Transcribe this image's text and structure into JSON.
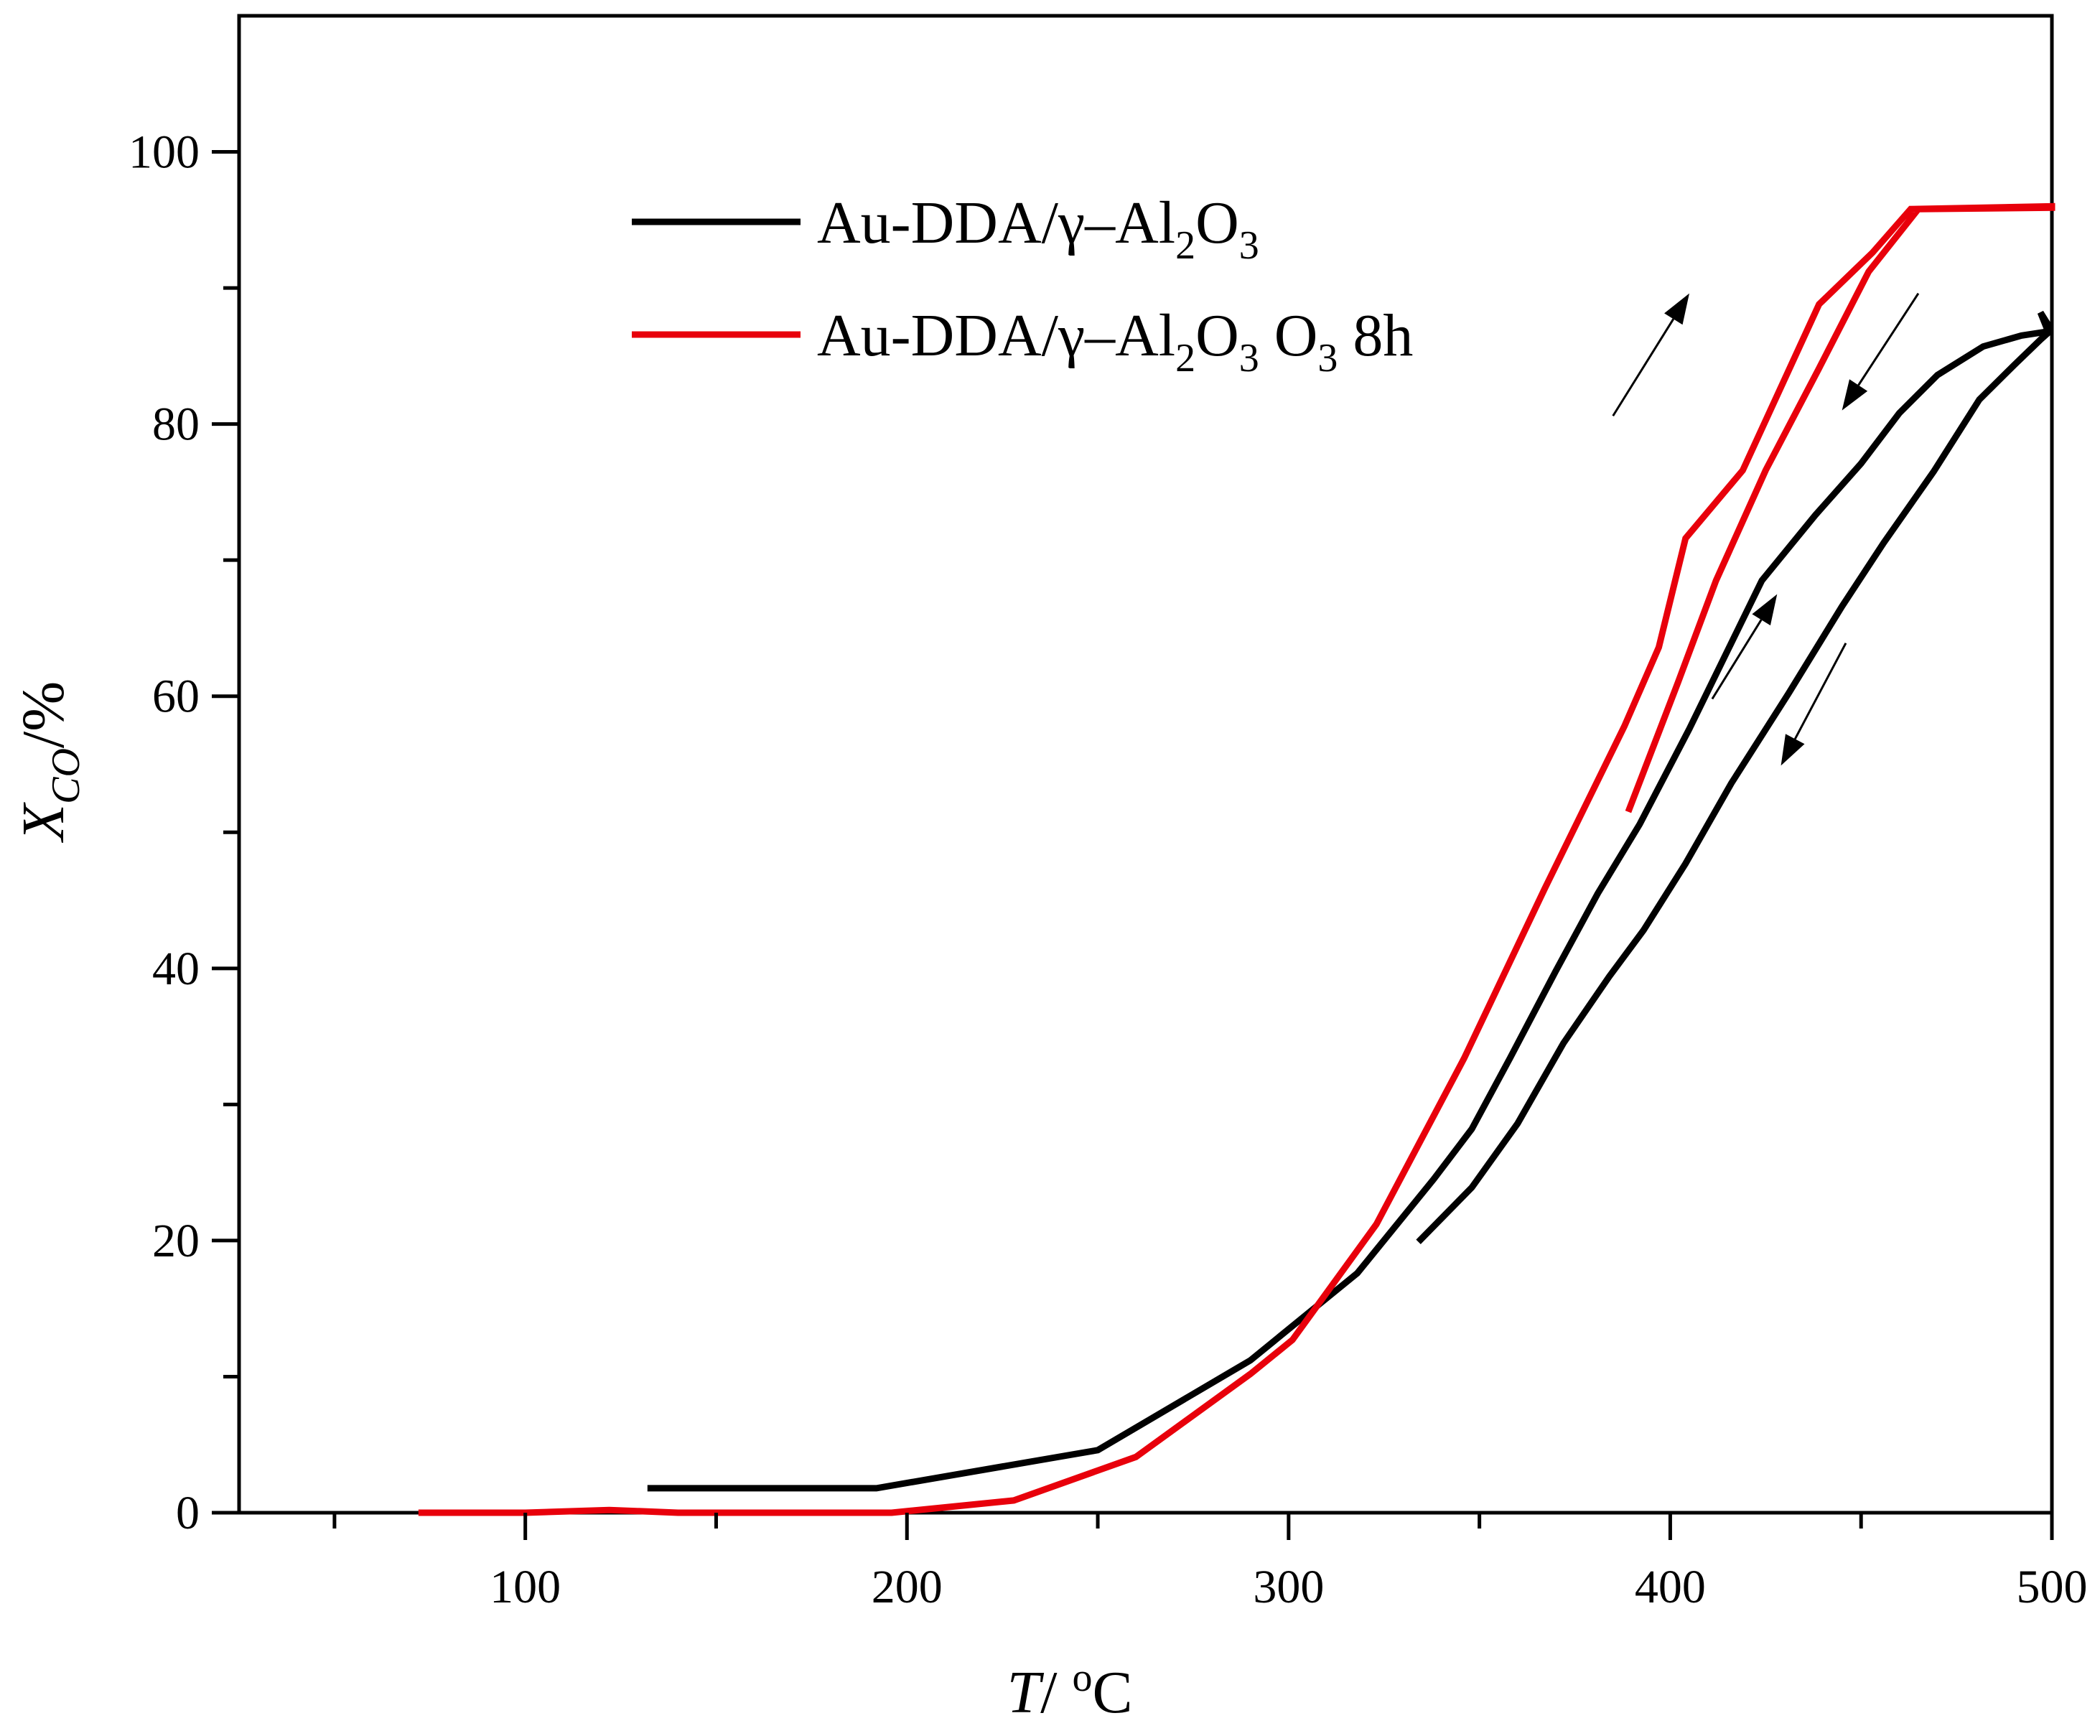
{
  "chart_data": {
    "type": "line",
    "title": "",
    "xlabel": {
      "main": "T",
      "sep": "/ ",
      "unit_sup": "o",
      "unit": "C"
    },
    "ylabel": {
      "main": "X",
      "sub": "CO",
      "sep": "/%"
    },
    "xlim": [
      25,
      500
    ],
    "ylim": [
      0,
      110
    ],
    "x_ticks": [
      100,
      200,
      300,
      400,
      500
    ],
    "y_ticks": [
      0,
      20,
      40,
      60,
      80,
      100
    ],
    "grid": false,
    "legend_position": "top-center",
    "series": [
      {
        "name": "Au-DDA/γ–Al2O3",
        "legend": {
          "text": "Au-DDA/γ–Al",
          "sub1": "2",
          "text2": "O",
          "sub2": "3",
          "text3": ""
        },
        "color": "#000000",
        "x": [
          132,
          192,
          250,
          290,
          318,
          338,
          348,
          358,
          370,
          381,
          392,
          405,
          424,
          438,
          450,
          460,
          470,
          482,
          492,
          499,
          497,
          499,
          499,
          497,
          490,
          481,
          469,
          456,
          445,
          431,
          416,
          404,
          393,
          384,
          372,
          360,
          348,
          334
        ],
        "y": [
          1.8,
          1.8,
          4.6,
          11.2,
          17.6,
          24.5,
          28.2,
          33.4,
          39.8,
          45.5,
          50.6,
          57.6,
          68.5,
          73.3,
          77.1,
          80.8,
          83.6,
          85.7,
          86.5,
          86.8,
          88.2,
          87.3,
          86.7,
          86.2,
          84.3,
          81.8,
          76.5,
          71.3,
          66.6,
          60.2,
          53.6,
          47.7,
          42.8,
          39.4,
          34.5,
          28.6,
          23.9,
          19.9
        ]
      },
      {
        "name": "Au-DDA/γ–Al2O3 O3 8h",
        "legend": {
          "text": "Au-DDA/γ–Al",
          "sub1": "2",
          "text2": "O",
          "sub2": "3",
          "text3": " O",
          "sub3": "3",
          "text4": " 8h"
        },
        "color": "#e8000b",
        "x": [
          72,
          100,
          122,
          140,
          170,
          196,
          228,
          260,
          290,
          301,
          323,
          346,
          367,
          388,
          397,
          404,
          419,
          439,
          453,
          463,
          500,
          500,
          465,
          452,
          439,
          425,
          412,
          402,
          389
        ],
        "y": [
          0.0,
          0.0,
          0.2,
          0.0,
          0.0,
          0.0,
          0.9,
          4.1,
          10.2,
          12.7,
          21.2,
          33.4,
          45.8,
          57.8,
          63.6,
          71.6,
          76.6,
          88.8,
          92.6,
          95.8,
          96.0,
          95.9,
          95.8,
          91.2,
          84.1,
          76.6,
          68.5,
          61.0,
          51.5
        ]
      }
    ],
    "arrows": [
      {
        "series": "Au-DDA/γ–Al2O3 O3 8h",
        "direction": "up",
        "from": [
          385,
          80.6
        ],
        "to": [
          405,
          89.6
        ]
      },
      {
        "series": "Au-DDA/γ–Al2O3 O3 8h",
        "direction": "down",
        "from": [
          465,
          89.6
        ],
        "to": [
          445,
          81.0
        ]
      },
      {
        "series": "Au-DDA/γ–Al2O3",
        "direction": "up",
        "from": [
          411,
          59.8
        ],
        "to": [
          428,
          67.5
        ]
      },
      {
        "series": "Au-DDA/γ–Al2O3",
        "direction": "down",
        "from": [
          446,
          63.9
        ],
        "to": [
          429,
          54.9
        ]
      }
    ]
  }
}
